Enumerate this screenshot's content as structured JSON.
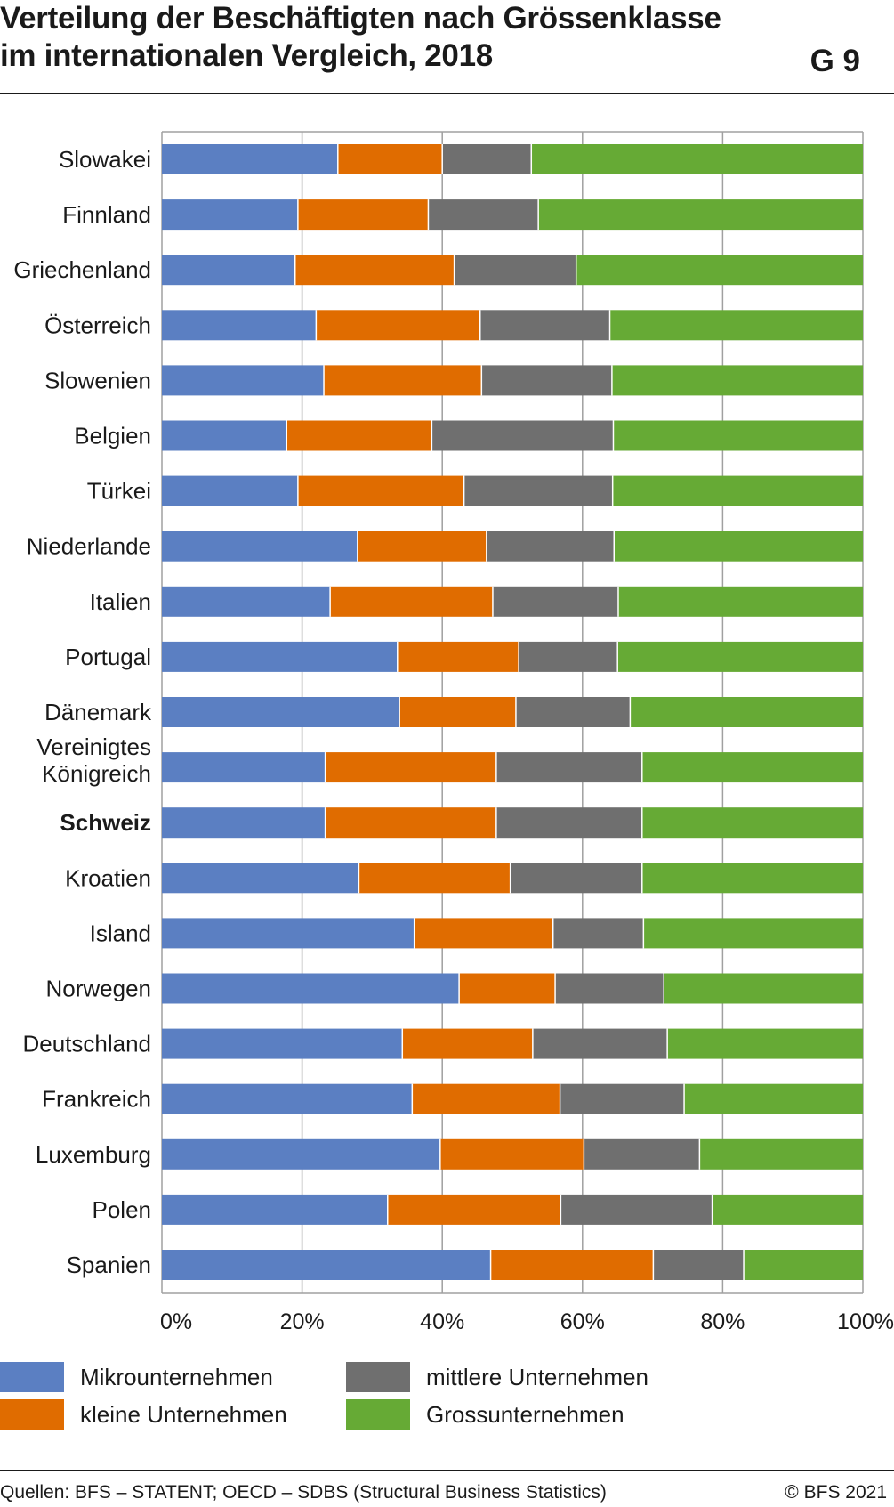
{
  "header": {
    "title_line1": "Verteilung der Beschäftigten nach Grössenklasse",
    "title_line2": "im internationalen Vergleich, 2018",
    "code": "G 9"
  },
  "legend": {
    "items": [
      {
        "label": "Mikrounternehmen",
        "color": "#5b7fc2"
      },
      {
        "label": "kleine Unternehmen",
        "color": "#e06c00"
      },
      {
        "label": "mittlere Unternehmen",
        "color": "#6f6f6f"
      },
      {
        "label": "Grossunternehmen",
        "color": "#66aa35"
      }
    ]
  },
  "footer": {
    "source": "Quellen:  BFS – STATENT; OECD – SDBS (Structural Business Statistics)",
    "copyright": "© BFS 2021"
  },
  "chart_data": {
    "type": "bar",
    "orientation": "horizontal",
    "stacked": true,
    "title": "Verteilung der Beschäftigten nach Grössenklasse im internationalen Vergleich, 2018",
    "xlim": [
      0,
      100
    ],
    "x_ticks": [
      "0%",
      "20%",
      "40%",
      "60%",
      "80%",
      "100%"
    ],
    "grid": true,
    "legend_position": "bottom",
    "highlight_category": "Schweiz",
    "categories": [
      "Slowakei",
      "Finnland",
      "Griechenland",
      "Österreich",
      "Slowenien",
      "Belgien",
      "Türkei",
      "Niederlande",
      "Italien",
      "Portugal",
      "Dänemark",
      "Vereinigtes Königreich",
      "Schweiz",
      "Kroatien",
      "Island",
      "Norwegen",
      "Deutschland",
      "Frankreich",
      "Luxemburg",
      "Polen",
      "Spanien"
    ],
    "series": [
      {
        "name": "Mikrounternehmen",
        "color": "#5b7fc2",
        "values": [
          25.1,
          19.4,
          19.0,
          22.0,
          23.1,
          17.8,
          19.4,
          27.9,
          24.0,
          33.6,
          33.9,
          23.3,
          23.3,
          28.1,
          36.0,
          42.4,
          34.3,
          35.7,
          39.7,
          32.2,
          46.9
        ]
      },
      {
        "name": "kleine Unternehmen",
        "color": "#e06c00",
        "values": [
          14.9,
          18.6,
          22.7,
          23.4,
          22.5,
          20.7,
          23.7,
          18.4,
          23.2,
          17.3,
          16.6,
          24.4,
          24.4,
          21.6,
          19.8,
          13.7,
          18.6,
          21.1,
          20.5,
          24.7,
          23.2
        ]
      },
      {
        "name": "mittlere Unternehmen",
        "color": "#6f6f6f",
        "values": [
          12.7,
          15.7,
          17.4,
          18.5,
          18.6,
          25.9,
          21.2,
          18.2,
          17.9,
          14.1,
          16.3,
          20.8,
          20.8,
          18.8,
          12.9,
          15.5,
          19.2,
          17.7,
          16.5,
          21.6,
          12.9
        ]
      },
      {
        "name": "Grossunternehmen",
        "color": "#66aa35",
        "values": [
          47.3,
          46.3,
          40.9,
          36.1,
          35.8,
          35.6,
          35.7,
          35.5,
          34.9,
          35.0,
          33.2,
          31.5,
          31.5,
          31.5,
          31.3,
          28.4,
          27.9,
          25.5,
          23.3,
          21.5,
          17.0
        ]
      }
    ]
  }
}
